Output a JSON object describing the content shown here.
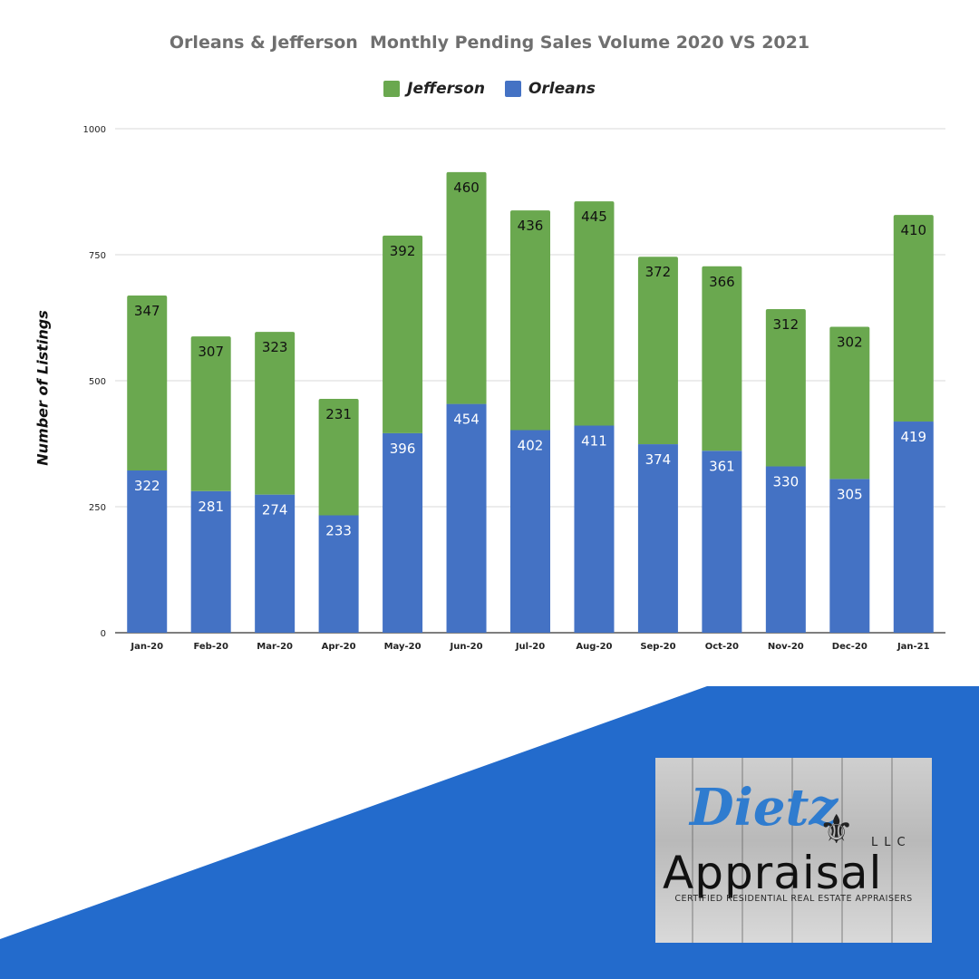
{
  "colors": {
    "jefferson": "#6aa84f",
    "orleans": "#4472c4",
    "banner": "#236bcc",
    "grid": "#d9d9d9",
    "axis": "#333333"
  },
  "chart_data": {
    "type": "bar",
    "stacked": true,
    "title": "Orleans & Jefferson  Monthly Pending Sales Volume 2020 VS 2021",
    "xlabel": "",
    "ylabel": "Number of Listings",
    "ylim": [
      0,
      1000
    ],
    "yticks": [
      0,
      250,
      500,
      750,
      1000
    ],
    "grid": true,
    "legend_placement": "top-center",
    "categories": [
      "Jan-20",
      "Feb-20",
      "Mar-20",
      "Apr-20",
      "May-20",
      "Jun-20",
      "Jul-20",
      "Aug-20",
      "Sep-20",
      "Oct-20",
      "Nov-20",
      "Dec-20",
      "Jan-21"
    ],
    "series": [
      {
        "name": "Orleans",
        "values": [
          322,
          281,
          274,
          233,
          396,
          454,
          402,
          411,
          374,
          361,
          330,
          305,
          419
        ]
      },
      {
        "name": "Jefferson",
        "values": [
          347,
          307,
          323,
          231,
          392,
          460,
          436,
          445,
          372,
          366,
          312,
          302,
          410
        ]
      }
    ],
    "legend": [
      "Jefferson",
      "Orleans"
    ]
  },
  "logo": {
    "script_text": "Dietz",
    "main_text": "Appraisal",
    "llc_text": "LLC",
    "tagline": "CERTIFIED RESIDENTIAL REAL ESTATE APPRAISERS"
  }
}
